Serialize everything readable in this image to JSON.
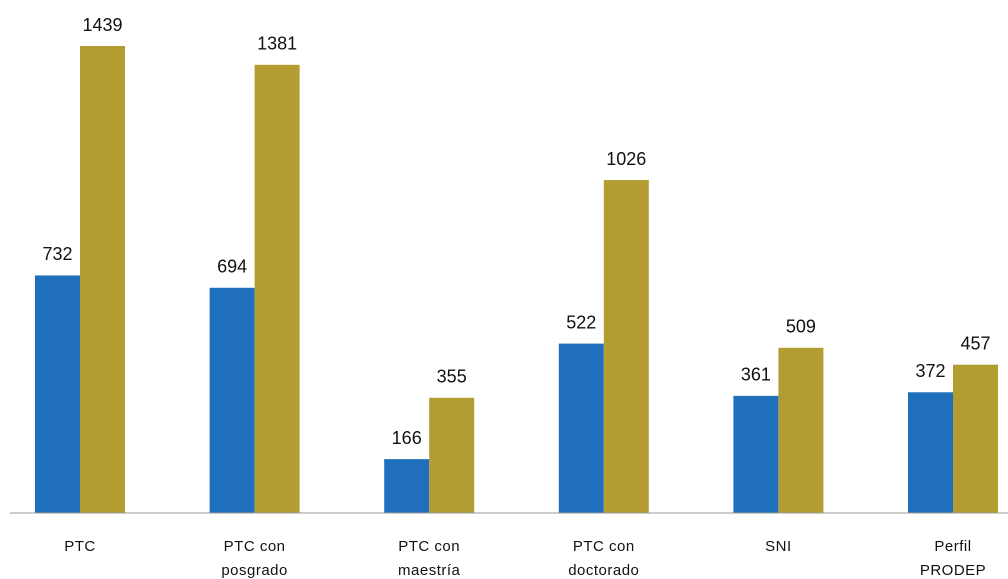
{
  "chart_data": {
    "type": "bar",
    "categories": [
      [
        "PTC"
      ],
      [
        "PTC con",
        "posgrado"
      ],
      [
        "PTC con",
        "maestría"
      ],
      [
        "PTC con",
        "doctorado"
      ],
      [
        "SNI"
      ],
      [
        "Perfil",
        "PRODEP"
      ]
    ],
    "series": [
      {
        "color": "#1f6fbd",
        "values": [
          732,
          694,
          166,
          522,
          361,
          372
        ]
      },
      {
        "color": "#b39d32",
        "values": [
          1439,
          1381,
          355,
          1026,
          509,
          457
        ]
      }
    ]
  }
}
